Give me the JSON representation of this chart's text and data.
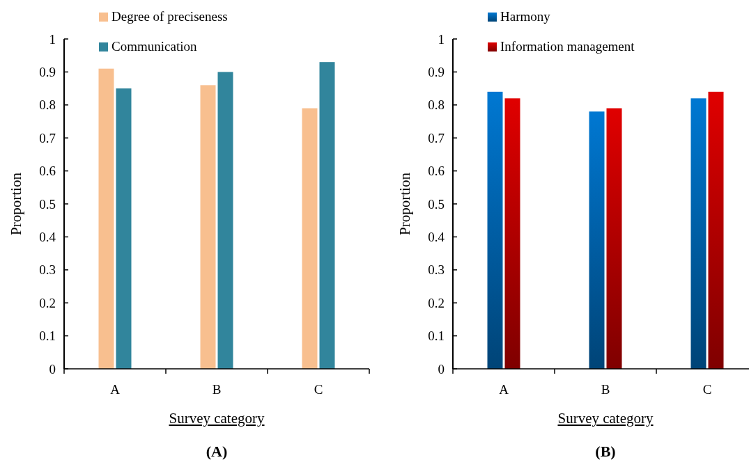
{
  "chart_data": [
    {
      "type": "bar",
      "categories": [
        "A",
        "B",
        "C"
      ],
      "xlabel": "Survey category",
      "ylabel": "Proportion",
      "ylim": [
        0,
        1
      ],
      "yticks": [
        0,
        0.1,
        0.2,
        0.3,
        0.4,
        0.5,
        0.6,
        0.7,
        0.8,
        0.9,
        1
      ],
      "legend": "top left",
      "annotations": [
        "(A)"
      ],
      "series": [
        {
          "name": "Degree of preciseness",
          "color": "#f8bf8f",
          "values": [
            0.91,
            0.86,
            0.79
          ]
        },
        {
          "name": "Communication",
          "color": "#31859c",
          "values": [
            0.85,
            0.9,
            0.93
          ]
        }
      ]
    },
    {
      "type": "bar",
      "categories": [
        "A",
        "B",
        "C"
      ],
      "xlabel": "Survey category",
      "ylabel": "Proportion",
      "ylim": [
        0,
        1
      ],
      "yticks": [
        0,
        0.1,
        0.2,
        0.3,
        0.4,
        0.5,
        0.6,
        0.7,
        0.8,
        0.9,
        1
      ],
      "legend": "top left",
      "annotations": [
        "(B)"
      ],
      "series": [
        {
          "name": "Harmony",
          "color": "#0078d2",
          "values": [
            0.84,
            0.78,
            0.82
          ]
        },
        {
          "name": "Information management",
          "color": "#e00000",
          "values": [
            0.82,
            0.79,
            0.84
          ]
        }
      ]
    }
  ]
}
